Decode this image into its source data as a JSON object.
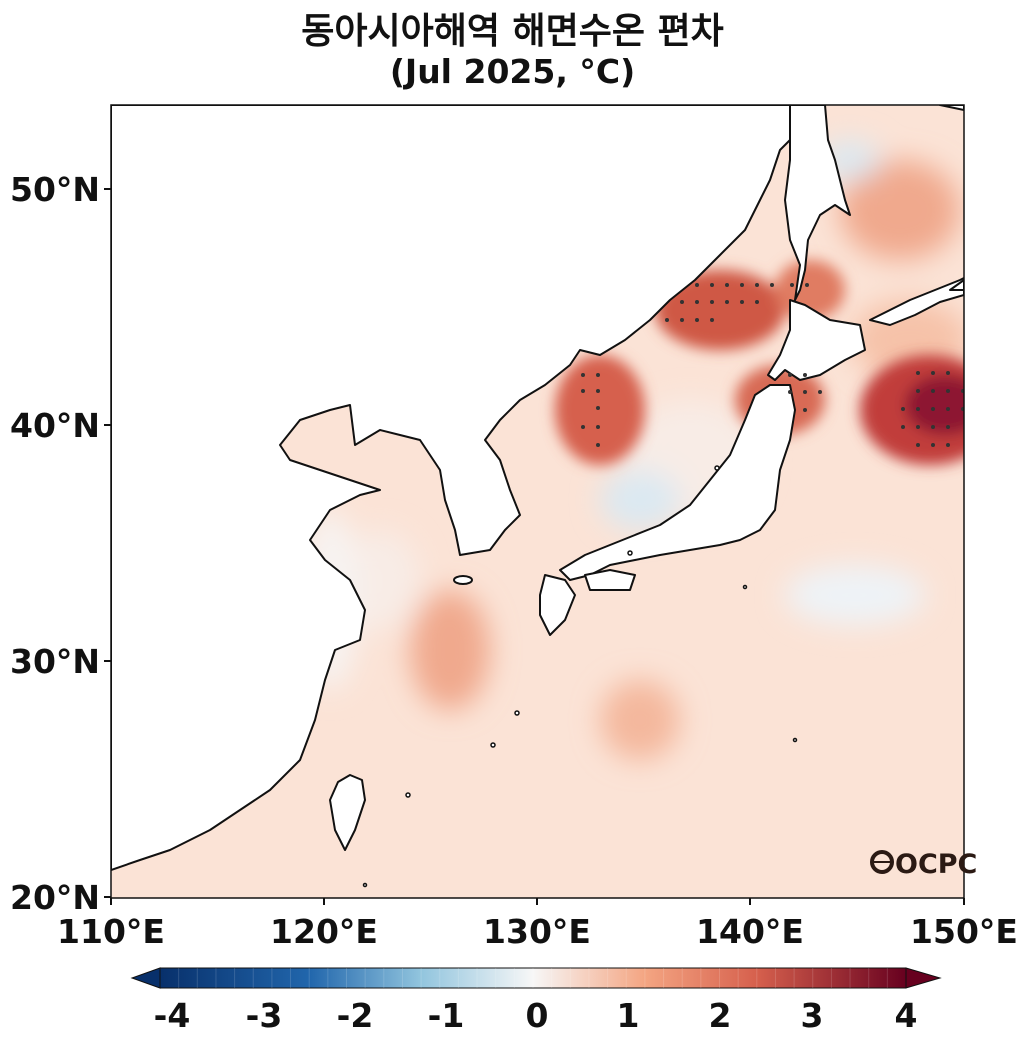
{
  "title": {
    "line1": "동아시아해역 해면수온 편차",
    "line2": "(Jul 2025, °C)"
  },
  "map": {
    "lat_labels": [
      "50°N",
      "40°N",
      "30°N",
      "20°N"
    ],
    "lon_labels": [
      "110°E",
      "120°E",
      "130°E",
      "140°E",
      "150°E"
    ],
    "extent": {
      "lon_min": 110,
      "lon_max": 150,
      "lat_min": 20,
      "lat_max": 53.5
    },
    "logo_text": "OCPC"
  },
  "colorbar": {
    "labels": [
      "-4",
      "-3",
      "-2",
      "-1",
      "0",
      "1",
      "2",
      "3",
      "4"
    ],
    "min": -4,
    "max": 4,
    "levels": 40,
    "colors": {
      "neg_dark": "#08306b",
      "neg_mid": "#4393c3",
      "neg_light": "#d1e5f0",
      "zero": "#f7f7f7",
      "pos_light": "#fddbc7",
      "pos_mid": "#d6604d",
      "pos_dark": "#67001f"
    }
  }
}
